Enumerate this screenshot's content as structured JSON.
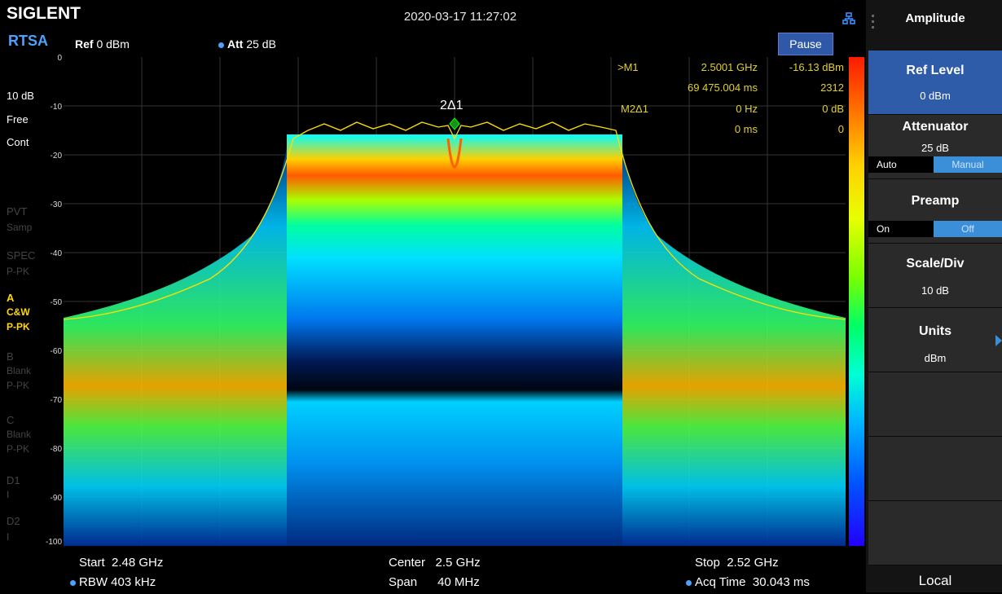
{
  "header": {
    "logo": "SIGLENT",
    "datetime": "2020-03-17 11:27:02",
    "mode": "RTSA",
    "ref_label": "Ref",
    "ref_value": "0 dBm",
    "att_label": "Att",
    "att_value": "25 dB",
    "pause": "Pause"
  },
  "left_panel": {
    "scale": "10 dB",
    "free": "Free",
    "cont": "Cont",
    "pvt": "PVT",
    "pvt_mode": "Samp",
    "spec": "SPEC",
    "spec_mode": "P-PK",
    "trace_a": "A",
    "trace_a_type": "C&W",
    "trace_a_mode": "P-PK",
    "trace_b": "B",
    "trace_b_type": "Blank",
    "trace_b_mode": "P-PK",
    "trace_c": "C",
    "trace_c_type": "Blank",
    "trace_c_mode": "P-PK",
    "d1": "D1",
    "d1_val": "I",
    "d2": "D2",
    "d2_val": "I"
  },
  "y_ticks": [
    "0",
    "-10",
    "-20",
    "-30",
    "-40",
    "-50",
    "-60",
    "-70",
    "-80",
    "-90",
    "-100"
  ],
  "markers": {
    "m1_label": ">M1",
    "m1_freq": "2.5001 GHz",
    "m1_level": "-16.13 dBm",
    "m1_time": "69 475.004 ms",
    "m1_count": "2312",
    "m2_label": "M2Δ1",
    "m2_freq": "0 Hz",
    "m2_level": "0 dB",
    "m2_time": "0 ms",
    "m2_count": "0",
    "plot_marker": "2Δ1"
  },
  "footer": {
    "start_label": "Start",
    "start_value": "2.48 GHz",
    "rbw_label": "RBW",
    "rbw_value": "403 kHz",
    "center_label": "Center",
    "center_value": "2.5 GHz",
    "span_label": "Span",
    "span_value": "40 MHz",
    "stop_label": "Stop",
    "stop_value": "2.52 GHz",
    "acq_label": "Acq Time",
    "acq_value": "30.043 ms"
  },
  "softkeys": {
    "menu_title": "Amplitude",
    "ref_level": "Ref Level",
    "ref_level_value": "0 dBm",
    "attenuator": "Attenuator",
    "attenuator_value": "25 dB",
    "att_auto": "Auto",
    "att_manual": "Manual",
    "preamp": "Preamp",
    "preamp_on": "On",
    "preamp_off": "Off",
    "scale_div": "Scale/Div",
    "scale_div_value": "10 dB",
    "units": "Units",
    "units_value": "dBm",
    "local": "Local"
  },
  "colors": {
    "accent_blue": "#4aa3ff",
    "softkey_selected": "#2f5ca8",
    "marker_yellow": "#e3d02a",
    "trace_yellow": "#ffd800"
  }
}
